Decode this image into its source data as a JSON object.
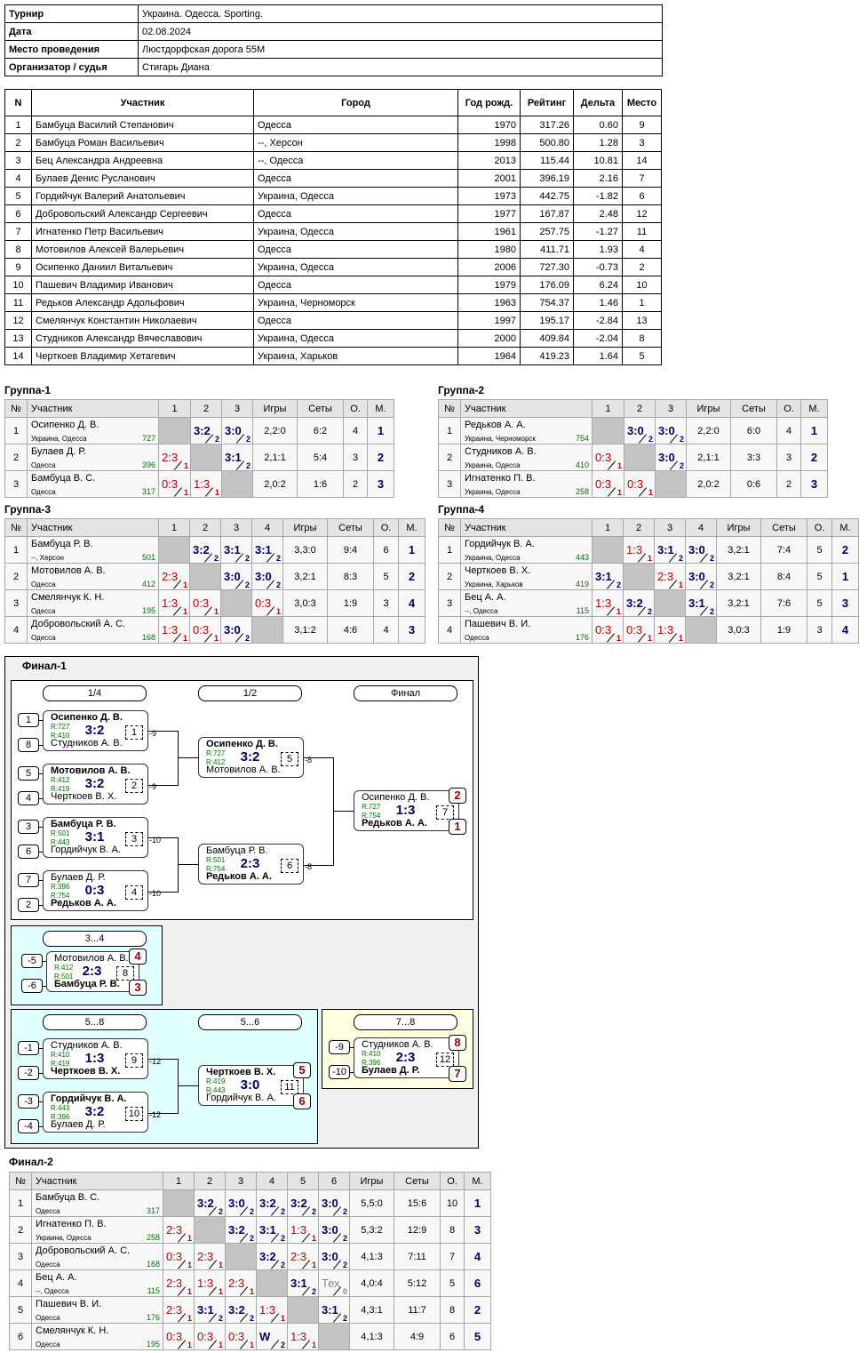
{
  "info": {
    "rows": [
      [
        "Турнир",
        "Украина. Одесса. Sporting."
      ],
      [
        "Дата",
        "02.08.2024"
      ],
      [
        "Место проведения",
        "Люстдорфская дорога 55М"
      ],
      [
        "Организатор / судья",
        "Стигарь Диана"
      ]
    ]
  },
  "participants": {
    "headers": [
      "N",
      "Участник",
      "Город",
      "Год рожд.",
      "Рейтинг",
      "Дельта",
      "Место"
    ],
    "rows": [
      [
        "1",
        "Бамбуца Василий Степанович",
        "Одесса",
        "1970",
        "317.26",
        "0.60",
        "9"
      ],
      [
        "2",
        "Бамбуца Роман Васильевич",
        "--, Херсон",
        "1998",
        "500.80",
        "1.28",
        "3"
      ],
      [
        "3",
        "Бец Александра Андреевна",
        "--, Одесса",
        "2013",
        "115.44",
        "10.81",
        "14"
      ],
      [
        "4",
        "Булаев Денис Русланович",
        "Одесса",
        "2001",
        "396.19",
        "2.16",
        "7"
      ],
      [
        "5",
        "Гордийчук Валерий Анатольевич",
        "Украина, Одесса",
        "1973",
        "442.75",
        "-1.82",
        "6"
      ],
      [
        "6",
        "Добровольский Александр Сергеевич",
        "Одесса",
        "1977",
        "167.87",
        "2.48",
        "12"
      ],
      [
        "7",
        "Игнатенко Петр Васильевич",
        "Украина, Одесса",
        "1961",
        "257.75",
        "-1.27",
        "11"
      ],
      [
        "8",
        "Мотовилов Алексей Валерьевич",
        "Одесса",
        "1980",
        "411.71",
        "1.93",
        "4"
      ],
      [
        "9",
        "Осипенко Даниил Витальевич",
        "Украина, Одесса",
        "2006",
        "727.30",
        "-0.73",
        "2"
      ],
      [
        "10",
        "Пашевич Владимир Иванович",
        "Одесса",
        "1979",
        "176.09",
        "6.24",
        "10"
      ],
      [
        "11",
        "Редьков Александр Адольфович",
        "Украина, Черноморск",
        "1963",
        "754.37",
        "1.46",
        "1"
      ],
      [
        "12",
        "Смелянчук Константин Николаевич",
        "Одесса",
        "1997",
        "195.17",
        "-2.84",
        "13"
      ],
      [
        "13",
        "Студников Александр Вячеславович",
        "Украина, Одесса",
        "2000",
        "409.84",
        "-2.04",
        "8"
      ],
      [
        "14",
        "Черткоев Владимир Хетагевич",
        "Украина, Харьков",
        "1964",
        "419.23",
        "1.64",
        "5"
      ]
    ]
  },
  "groups": [
    {
      "title": "Группа-1",
      "headers": [
        "№",
        "Участник",
        "1",
        "2",
        "3",
        "Игры",
        "Сеты",
        "О.",
        "М."
      ],
      "rows": [
        {
          "n": "1",
          "name": "Осипенко Д. В.",
          "city": "Украина, Одесса",
          "rating": "727",
          "cells": [
            null,
            [
              "3:2",
              "2"
            ],
            [
              "3:0",
              "2"
            ]
          ],
          "games": "2,2:0",
          "sets": "6:2",
          "points": "4",
          "place": "1"
        },
        {
          "n": "2",
          "name": "Булаев Д. Р.",
          "city": "Одесса",
          "rating": "396",
          "cells": [
            [
              "2:3",
              "1"
            ],
            null,
            [
              "3:1",
              "2"
            ]
          ],
          "games": "2,1:1",
          "sets": "5:4",
          "points": "3",
          "place": "2"
        },
        {
          "n": "3",
          "name": "Бамбуца В. С.",
          "city": "Одесса",
          "rating": "317",
          "cells": [
            [
              "0:3",
              "1"
            ],
            [
              "1:3",
              "1"
            ],
            null
          ],
          "games": "2,0:2",
          "sets": "1:6",
          "points": "2",
          "place": "3"
        }
      ]
    },
    {
      "title": "Группа-2",
      "headers": [
        "№",
        "Участник",
        "1",
        "2",
        "3",
        "Игры",
        "Сеты",
        "О.",
        "М."
      ],
      "rows": [
        {
          "n": "1",
          "name": "Редьков А. А.",
          "city": "Украина, Черноморск",
          "rating": "754",
          "cells": [
            null,
            [
              "3:0",
              "2"
            ],
            [
              "3:0",
              "2"
            ]
          ],
          "games": "2,2:0",
          "sets": "6:0",
          "points": "4",
          "place": "1"
        },
        {
          "n": "2",
          "name": "Студников А. В.",
          "city": "Украина, Одесса",
          "rating": "410",
          "cells": [
            [
              "0:3",
              "1"
            ],
            null,
            [
              "3:0",
              "2"
            ]
          ],
          "games": "2,1:1",
          "sets": "3:3",
          "points": "3",
          "place": "2"
        },
        {
          "n": "3",
          "name": "Игнатенко П. В.",
          "city": "Украина, Одесса",
          "rating": "258",
          "cells": [
            [
              "0:3",
              "1"
            ],
            [
              "0:3",
              "1"
            ],
            null
          ],
          "games": "2,0:2",
          "sets": "0:6",
          "points": "2",
          "place": "3"
        }
      ]
    },
    {
      "title": "Группа-3",
      "headers": [
        "№",
        "Участник",
        "1",
        "2",
        "3",
        "4",
        "Игры",
        "Сеты",
        "О.",
        "М."
      ],
      "rows": [
        {
          "n": "1",
          "name": "Бамбуца Р. В.",
          "city": "--, Херсон",
          "rating": "501",
          "cells": [
            null,
            [
              "3:2",
              "2"
            ],
            [
              "3:1",
              "2"
            ],
            [
              "3:1",
              "2"
            ]
          ],
          "games": "3,3:0",
          "sets": "9:4",
          "points": "6",
          "place": "1"
        },
        {
          "n": "2",
          "name": "Мотовилов А. В.",
          "city": "Одесса",
          "rating": "412",
          "cells": [
            [
              "2:3",
              "1"
            ],
            null,
            [
              "3:0",
              "2"
            ],
            [
              "3:0",
              "2"
            ]
          ],
          "games": "3,2:1",
          "sets": "8:3",
          "points": "5",
          "place": "2"
        },
        {
          "n": "3",
          "name": "Смелянчук К. Н.",
          "city": "Одесса",
          "rating": "195",
          "cells": [
            [
              "1:3",
              "1"
            ],
            [
              "0:3",
              "1"
            ],
            null,
            [
              "0:3",
              "1"
            ]
          ],
          "games": "3,0:3",
          "sets": "1:9",
          "points": "3",
          "place": "4"
        },
        {
          "n": "4",
          "name": "Добровольский А. С.",
          "city": "Одесса",
          "rating": "168",
          "cells": [
            [
              "1:3",
              "1"
            ],
            [
              "0:3",
              "1"
            ],
            [
              "3:0",
              "2"
            ],
            null
          ],
          "games": "3,1:2",
          "sets": "4:6",
          "points": "4",
          "place": "3"
        }
      ]
    },
    {
      "title": "Группа-4",
      "headers": [
        "№",
        "Участник",
        "1",
        "2",
        "3",
        "4",
        "Игры",
        "Сеты",
        "О.",
        "М."
      ],
      "rows": [
        {
          "n": "1",
          "name": "Гордийчук В. А.",
          "city": "Украина, Одесса",
          "rating": "443",
          "cells": [
            null,
            [
              "1:3",
              "1"
            ],
            [
              "3:1",
              "2"
            ],
            [
              "3:0",
              "2"
            ]
          ],
          "games": "3,2:1",
          "sets": "7:4",
          "points": "5",
          "place": "2"
        },
        {
          "n": "2",
          "name": "Черткоев В. Х.",
          "city": "Украина, Харьков",
          "rating": "419",
          "cells": [
            [
              "3:1",
              "2"
            ],
            null,
            [
              "2:3",
              "1"
            ],
            [
              "3:0",
              "2"
            ]
          ],
          "games": "3,2:1",
          "sets": "8:4",
          "points": "5",
          "place": "1"
        },
        {
          "n": "3",
          "name": "Бец А. А.",
          "city": "--, Одесса",
          "rating": "115",
          "cells": [
            [
              "1:3",
              "1"
            ],
            [
              "3:2",
              "2"
            ],
            null,
            [
              "3:1",
              "2"
            ]
          ],
          "games": "3,2:1",
          "sets": "7:6",
          "points": "5",
          "place": "3"
        },
        {
          "n": "4",
          "name": "Пашевич В. И.",
          "city": "Одесса",
          "rating": "176",
          "cells": [
            [
              "0:3",
              "1"
            ],
            [
              "0:3",
              "1"
            ],
            [
              "1:3",
              "1"
            ],
            null
          ],
          "games": "3,0:3",
          "sets": "1:9",
          "points": "3",
          "place": "4"
        }
      ]
    }
  ],
  "final1": {
    "title": "Финал-1",
    "stages": [
      "1/4",
      "1/2",
      "Финал"
    ],
    "main": [
      {
        "top": {
          "seed": "1",
          "name": "Осипенко Д. В.",
          "rating": "R:727"
        },
        "bottom": {
          "seed": "8",
          "name": "Студников А. В.",
          "rating": "R:410"
        },
        "score": "3:2",
        "num": "1",
        "next": "-9"
      },
      {
        "top": {
          "seed": "5",
          "name": "Мотовилов А. В.",
          "rating": "R:412"
        },
        "bottom": {
          "seed": "4",
          "name": "Черткоев В. Х.",
          "rating": "R:419"
        },
        "score": "3:2",
        "num": "2",
        "next": "-9"
      },
      {
        "top": {
          "seed": "3",
          "name": "Бамбуца Р. В.",
          "rating": "R:501"
        },
        "bottom": {
          "seed": "6",
          "name": "Гордийчук В. А.",
          "rating": "R:443"
        },
        "score": "3:1",
        "num": "3",
        "next": "-10"
      },
      {
        "top": {
          "seed": "7",
          "name": "Булаев Д. Р.",
          "rating": "R:396"
        },
        "bottom": {
          "seed": "2",
          "name": "Редьков А. А.",
          "rating": "R:754"
        },
        "score": "0:3",
        "num": "4",
        "next": "-10"
      },
      {
        "top": {
          "name": "Осипенко Д. В.",
          "rating": "R:727"
        },
        "bottom": {
          "name": "Мотовилов А. В.",
          "rating": "R:412"
        },
        "score": "3:2",
        "num": "5",
        "next": "-8"
      },
      {
        "top": {
          "name": "Бамбуца Р. В.",
          "rating": "R:501"
        },
        "bottom": {
          "name": "Редьков А. А.",
          "rating": "R:754"
        },
        "score": "2:3",
        "num": "6",
        "next": "-8"
      },
      {
        "top": {
          "name": "Осипенко Д. В.",
          "rating": "R:727"
        },
        "bottom": {
          "name": "Редьков А. А.",
          "rating": "R:754"
        },
        "score": "1:3",
        "num": "7",
        "places": [
          "2",
          "1"
        ]
      }
    ],
    "third": {
      "stage": "3...4",
      "match": {
        "top": {
          "seed": "-5",
          "name": "Мотовилов А. В.",
          "rating": "R:412"
        },
        "bottom": {
          "seed": "-6",
          "name": "Бамбуца Р. В.",
          "rating": "R:501"
        },
        "score": "2:3",
        "num": "8",
        "places": [
          "4",
          "3"
        ]
      }
    },
    "fifth": {
      "stages": [
        "5...8",
        "5...6"
      ],
      "matches": [
        {
          "top": {
            "seed": "-1",
            "name": "Студников А. В.",
            "rating": "R:410"
          },
          "bottom": {
            "seed": "-2",
            "name": "Черткоев В. Х.",
            "rating": "R:419"
          },
          "score": "1:3",
          "num": "9",
          "next": "-12"
        },
        {
          "top": {
            "seed": "-3",
            "name": "Гордийчук В. А.",
            "rating": "R:443"
          },
          "bottom": {
            "seed": "-4",
            "name": "Булаев Д. Р.",
            "rating": "R:396"
          },
          "score": "3:2",
          "num": "10",
          "next": "-12"
        },
        {
          "top": {
            "name": "Черткоев В. Х.",
            "rating": "R:419"
          },
          "bottom": {
            "name": "Гордийчук В. А.",
            "rating": "R:443"
          },
          "score": "3:0",
          "num": "11",
          "places": [
            "5",
            "6"
          ]
        }
      ]
    },
    "seventh": {
      "stage": "7...8",
      "match": {
        "top": {
          "seed": "-9",
          "name": "Студников А. В.",
          "rating": "R:410"
        },
        "bottom": {
          "seed": "-10",
          "name": "Булаев Д. Р.",
          "rating": "R:396"
        },
        "score": "2:3",
        "num": "12",
        "places": [
          "8",
          "7"
        ]
      }
    }
  },
  "final2": {
    "title": "Финал-2",
    "headers": [
      "№",
      "Участник",
      "1",
      "2",
      "3",
      "4",
      "5",
      "6",
      "Игры",
      "Сеты",
      "О.",
      "М."
    ],
    "rows": [
      {
        "n": "1",
        "name": "Бамбуца В. С.",
        "city": "Одесса",
        "rating": "317",
        "cells": [
          null,
          [
            "3:2",
            "2"
          ],
          [
            "3:0",
            "2"
          ],
          [
            "3:2",
            "2"
          ],
          [
            "3:2",
            "2"
          ],
          [
            "3:0",
            "2"
          ]
        ],
        "games": "5,5:0",
        "sets": "15:6",
        "points": "10",
        "place": "1"
      },
      {
        "n": "2",
        "name": "Игнатенко П. В.",
        "city": "Украина, Одесса",
        "rating": "258",
        "cells": [
          [
            "2:3",
            "1"
          ],
          null,
          [
            "3:2",
            "2"
          ],
          [
            "3:1",
            "2"
          ],
          [
            "1:3",
            "1"
          ],
          [
            "3:0",
            "2"
          ]
        ],
        "games": "5,3:2",
        "sets": "12:9",
        "points": "8",
        "place": "3"
      },
      {
        "n": "3",
        "name": "Добровольский А. С.",
        "city": "Одесса",
        "rating": "168",
        "cells": [
          [
            "0:3",
            "1"
          ],
          [
            "2:3",
            "1"
          ],
          null,
          [
            "3:2",
            "2"
          ],
          [
            "2:3",
            "1"
          ],
          [
            "3:0",
            "2"
          ]
        ],
        "games": "4,1:3",
        "sets": "7:11",
        "points": "7",
        "place": "4"
      },
      {
        "n": "4",
        "name": "Бец А. А.",
        "city": "--, Одесса",
        "rating": "115",
        "cells": [
          [
            "2:3",
            "1"
          ],
          [
            "1:3",
            "1"
          ],
          [
            "2:3",
            "1"
          ],
          null,
          [
            "3:1",
            "2"
          ],
          [
            "Тех",
            "0"
          ]
        ],
        "games": "4,0:4",
        "sets": "5:12",
        "points": "5",
        "place": "6"
      },
      {
        "n": "5",
        "name": "Пашевич В. И.",
        "city": "Одесса",
        "rating": "176",
        "cells": [
          [
            "2:3",
            "1"
          ],
          [
            "3:1",
            "2"
          ],
          [
            "3:2",
            "2"
          ],
          [
            "1:3",
            "1"
          ],
          null,
          [
            "3:1",
            "2"
          ]
        ],
        "games": "4,3:1",
        "sets": "11:7",
        "points": "8",
        "place": "2"
      },
      {
        "n": "6",
        "name": "Смелянчук К. Н.",
        "city": "Одесса",
        "rating": "195",
        "cells": [
          [
            "0:3",
            "1"
          ],
          [
            "0:3",
            "1"
          ],
          [
            "0:3",
            "1"
          ],
          [
            "W",
            "2"
          ],
          [
            "1:3",
            "1"
          ],
          null
        ],
        "games": "4,1:3",
        "sets": "4:9",
        "points": "6",
        "place": "5"
      }
    ]
  }
}
